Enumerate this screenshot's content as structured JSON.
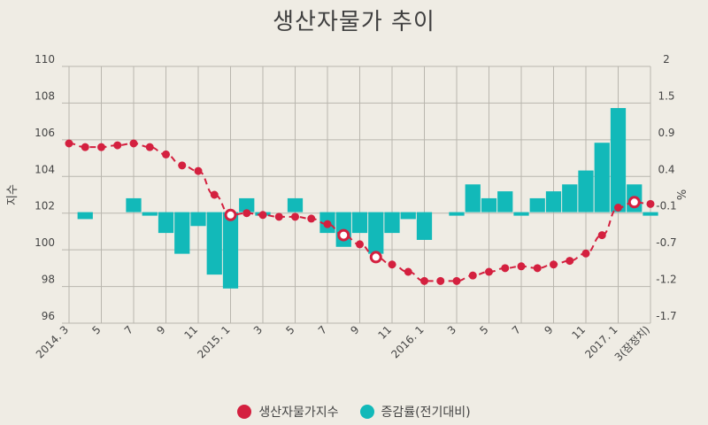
{
  "chart_data": {
    "type": "bar+line",
    "title": "생산자물가 추이",
    "ylabel_left": "지수",
    "ylabel_right": "%",
    "ylim_left": [
      96,
      110
    ],
    "yticks_left": [
      "110",
      "108",
      "106",
      "104",
      "102",
      "100",
      "98",
      "96"
    ],
    "ylim_right": [
      -1.7,
      2.0
    ],
    "yticks_right": [
      "2",
      "1.5",
      "0.9",
      "0.4",
      "-0.1",
      "-0.7",
      "-1.2",
      "-1.7"
    ],
    "x": [
      "2014.3",
      "2014.4",
      "2014.5",
      "2014.6",
      "2014.7",
      "2014.8",
      "2014.9",
      "2014.10",
      "2014.11",
      "2014.12",
      "2015.1",
      "2015.2",
      "2015.3",
      "2015.4",
      "2015.5",
      "2015.6",
      "2015.7",
      "2015.8",
      "2015.9",
      "2015.10",
      "2015.11",
      "2015.12",
      "2016.1",
      "2016.2",
      "2016.3",
      "2016.4",
      "2016.5",
      "2016.6",
      "2016.7",
      "2016.8",
      "2016.9",
      "2016.10",
      "2016.11",
      "2016.12",
      "2017.1",
      "2017.2",
      "2017.3"
    ],
    "xtick_labels": [
      "2014. 3",
      "",
      "5",
      "",
      "7",
      "",
      "9",
      "",
      "11",
      "",
      "2015. 1",
      "",
      "3",
      "",
      "5",
      "",
      "7",
      "",
      "9",
      "",
      "11",
      "",
      "2016. 1",
      "",
      "3",
      "",
      "5",
      "",
      "7",
      "",
      "9",
      "",
      "11",
      "",
      "2017. 1",
      "",
      "3(잠정치)"
    ],
    "series": [
      {
        "name": "생산자물가지수",
        "type": "line",
        "axis": "left",
        "color": "#d4203f",
        "highlighted": [
          "2015.1",
          "2015.8",
          "2015.10",
          "2017.2"
        ],
        "values": [
          105.8,
          105.6,
          105.6,
          105.7,
          105.8,
          105.6,
          105.2,
          104.6,
          104.3,
          103.0,
          101.9,
          102.0,
          101.9,
          101.8,
          101.8,
          101.7,
          101.4,
          100.8,
          100.3,
          99.6,
          99.2,
          98.8,
          98.3,
          98.3,
          98.3,
          98.6,
          98.8,
          99.0,
          99.1,
          99.0,
          99.2,
          99.4,
          99.8,
          100.8,
          102.3,
          102.6,
          102.5
        ]
      },
      {
        "name": "증감률(전기대비)",
        "type": "bar",
        "axis": "right",
        "color": "#12b9b9",
        "values": [
          null,
          -0.2,
          null,
          null,
          0.1,
          -0.1,
          -0.4,
          -0.7,
          -0.3,
          -1.0,
          -1.2,
          0.1,
          -0.1,
          null,
          0.1,
          null,
          -0.4,
          -0.6,
          -0.4,
          -0.7,
          -0.4,
          -0.2,
          -0.5,
          null,
          -0.1,
          0.3,
          0.1,
          0.2,
          -0.1,
          0.1,
          0.2,
          0.3,
          0.5,
          0.9,
          1.4,
          0.3,
          -0.1
        ]
      }
    ],
    "grid": true,
    "legend_position": "bottom-center"
  },
  "legend": {
    "items": [
      {
        "label": "생산자물가지수",
        "color": "#d4203f"
      },
      {
        "label": "증감률(전기대비)",
        "color": "#12b9b9"
      }
    ]
  }
}
